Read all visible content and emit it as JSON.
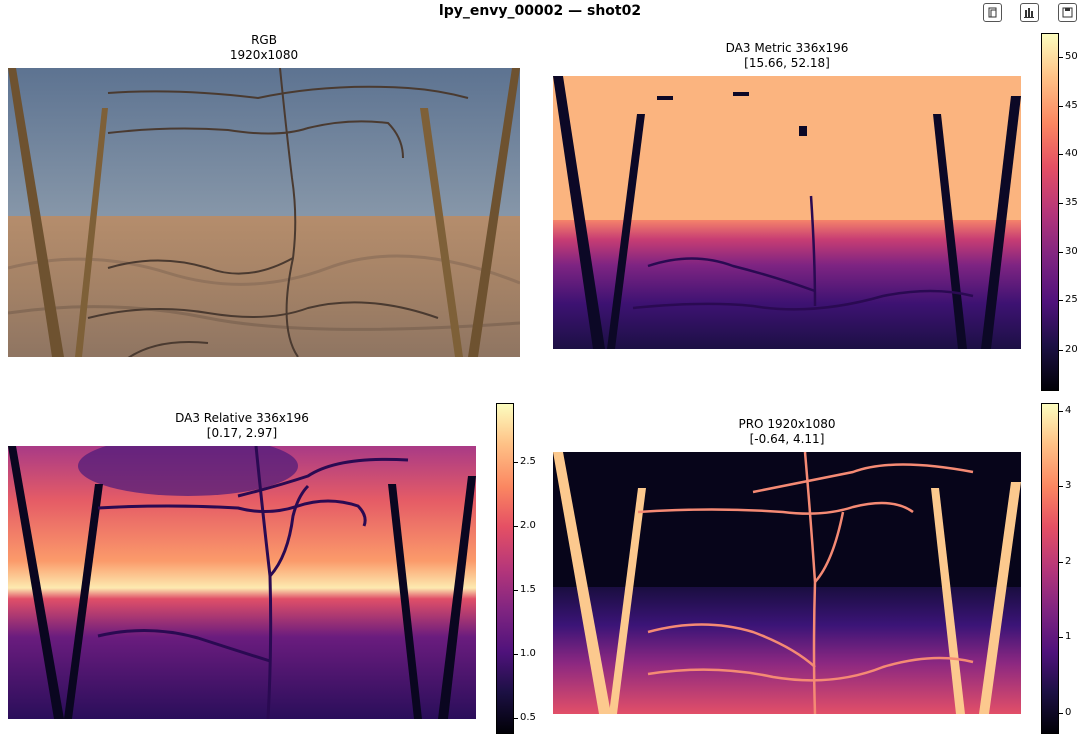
{
  "window": {
    "title": "lpy_envy_00002 — shot02"
  },
  "toolbar": {
    "icons": [
      "copy-icon",
      "bar-chart-icon",
      "save-icon"
    ]
  },
  "chart_data": [
    {
      "type": "image",
      "title": "RGB",
      "subtitle": "1920x1080"
    },
    {
      "type": "heatmap",
      "colormap": "magma",
      "title": "DA3 Metric  336x196",
      "subtitle": "[15.66, 52.18]",
      "range": [
        15.66,
        52.18
      ],
      "colorbar_ticks": [
        "50",
        "45",
        "40",
        "35",
        "30",
        "25",
        "20"
      ]
    },
    {
      "type": "heatmap",
      "colormap": "magma",
      "title": "DA3 Relative  336x196",
      "subtitle": "[0.17, 2.97]",
      "range": [
        0.17,
        2.97
      ],
      "colorbar_ticks": [
        "2.5",
        "2.0",
        "1.5",
        "1.0",
        "0.5"
      ]
    },
    {
      "type": "heatmap",
      "colormap": "magma",
      "title": "PRO  1920x1080",
      "subtitle": "[-0.64, 4.11]",
      "range": [
        -0.64,
        4.11
      ],
      "colorbar_ticks": [
        "4",
        "3",
        "2",
        "1",
        "0"
      ]
    }
  ]
}
